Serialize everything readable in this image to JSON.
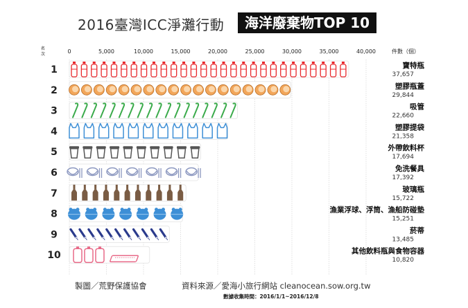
{
  "header": {
    "title_main": "2016臺灣ICC淨灘行動",
    "title_highlight": "海洋廢棄物TOP 10"
  },
  "axis": {
    "rank_label": "名次",
    "unit_label": "件數（個）"
  },
  "footer": {
    "credit": "製圖／荒野保護協會",
    "source": "資料來源／愛海小旅行網站 cleanocean.sow.org.tw",
    "period": "數據收集時間：2016/1/1~2016/12/8"
  },
  "colors": {
    "bottle": "#e8262a",
    "cap": "#f2a65a",
    "straw": "#3aaa4a",
    "bag": "#3d8fd6",
    "cup": "#555555",
    "tableware": "#8c98c0",
    "glass": "#7a5c44",
    "float": "#3d8fd6",
    "cigarette": "#2a3a8c",
    "container": "#e86a88",
    "grid": "#cccccc"
  },
  "chart_data": {
    "type": "bar",
    "title": "",
    "xlim": [
      0,
      40000
    ],
    "x_ticks": [
      "0",
      "5,000",
      "10,000",
      "15,000",
      "20,000",
      "25,000",
      "30,000",
      "35,000",
      "40,000"
    ],
    "x_tick_values": [
      0,
      5000,
      10000,
      15000,
      20000,
      25000,
      30000,
      35000,
      40000
    ],
    "grid": true,
    "items": [
      {
        "rank": "1",
        "name": "寶特瓶",
        "value": 37657,
        "value_label": "37,657",
        "icon": "bottle-icon",
        "icon_count": 28
      },
      {
        "rank": "2",
        "name": "塑膠瓶蓋",
        "value": 29844,
        "value_label": "29,844",
        "icon": "bottle-cap-icon",
        "icon_count": 18
      },
      {
        "rank": "3",
        "name": "吸管",
        "value": 22660,
        "value_label": "22,660",
        "icon": "straw-icon",
        "icon_count": 18
      },
      {
        "rank": "4",
        "name": "塑膠提袋",
        "value": 21358,
        "value_label": "21,358",
        "icon": "plastic-bag-icon",
        "icon_count": 11
      },
      {
        "rank": "5",
        "name": "外帶飲料杯",
        "value": 17694,
        "value_label": "17,694",
        "icon": "drink-cup-icon",
        "icon_count": 10
      },
      {
        "rank": "6",
        "name": "免洗餐具",
        "value": 17392,
        "value_label": "17,392",
        "icon": "tableware-icon",
        "icon_count": 7
      },
      {
        "rank": "7",
        "name": "玻璃瓶",
        "value": 15722,
        "value_label": "15,722",
        "icon": "glass-bottle-icon",
        "icon_count": 11
      },
      {
        "rank": "8",
        "name": "漁業浮球、浮筒、漁船防碰墊",
        "value": 15251,
        "value_label": "15,251",
        "icon": "fishing-float-icon",
        "icon_count": 7
      },
      {
        "rank": "9",
        "name": "菸蒂",
        "value": 13485,
        "value_label": "13,485",
        "icon": "cigarette-butt-icon",
        "icon_count": 11
      },
      {
        "rank": "10",
        "name": "其他飲料瓶與食物容器",
        "value": 10820,
        "value_label": "10,820",
        "icon": "food-container-icon",
        "icon_count": 4
      }
    ]
  }
}
